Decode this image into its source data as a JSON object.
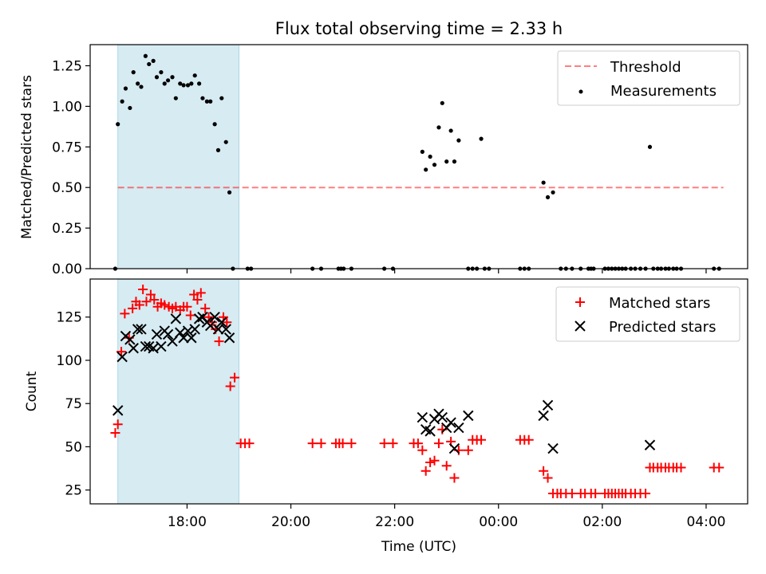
{
  "title": "Flux total observing time = 2.33 h",
  "chart_data": [
    {
      "type": "scatter",
      "ylabel": "Matched/Predicted stars",
      "xlabel": "",
      "xlim": [
        "16:08",
        "04:48"
      ],
      "ylim": [
        0,
        1.38
      ],
      "yticks": [
        "0.00",
        "0.25",
        "0.50",
        "0.75",
        "1.00",
        "1.25"
      ],
      "shaded_span": {
        "start": "16:40",
        "end": "19:00",
        "color": "#add8e6"
      },
      "threshold": {
        "name": "Threshold",
        "value": 0.5,
        "start": "16:40",
        "end": "04:20",
        "color": "#ff0000"
      },
      "legend_position": "top-right",
      "series": [
        {
          "name": "Measurements",
          "color": "#000000",
          "points": [
            [
              "16:37",
              0
            ],
            [
              "16:40",
              0.89
            ],
            [
              "16:45",
              1.03
            ],
            [
              "16:49",
              1.11
            ],
            [
              "16:54",
              0.99
            ],
            [
              "16:58",
              1.21
            ],
            [
              "17:03",
              1.14
            ],
            [
              "17:07",
              1.12
            ],
            [
              "17:12",
              1.31
            ],
            [
              "17:16",
              1.26
            ],
            [
              "17:21",
              1.28
            ],
            [
              "17:25",
              1.18
            ],
            [
              "17:30",
              1.21
            ],
            [
              "17:34",
              1.14
            ],
            [
              "17:38",
              1.16
            ],
            [
              "17:43",
              1.18
            ],
            [
              "17:47",
              1.05
            ],
            [
              "17:52",
              1.14
            ],
            [
              "17:56",
              1.13
            ],
            [
              "18:01",
              1.13
            ],
            [
              "18:05",
              1.14
            ],
            [
              "18:09",
              1.19
            ],
            [
              "18:14",
              1.14
            ],
            [
              "18:18",
              1.05
            ],
            [
              "18:23",
              1.03
            ],
            [
              "18:27",
              1.03
            ],
            [
              "18:32",
              0.89
            ],
            [
              "18:36",
              0.73
            ],
            [
              "18:40",
              1.05
            ],
            [
              "18:45",
              0.78
            ],
            [
              "18:49",
              0.47
            ],
            [
              "18:53",
              0
            ],
            [
              "19:10",
              0
            ],
            [
              "19:14",
              0
            ],
            [
              "20:25",
              0
            ],
            [
              "20:35",
              0
            ],
            [
              "20:55",
              0
            ],
            [
              "20:58",
              0
            ],
            [
              "21:01",
              0
            ],
            [
              "21:10",
              0
            ],
            [
              "21:48",
              0
            ],
            [
              "21:58",
              0
            ],
            [
              "22:32",
              0.72
            ],
            [
              "22:36",
              0.61
            ],
            [
              "22:41",
              0.69
            ],
            [
              "22:46",
              0.64
            ],
            [
              "22:51",
              0.87
            ],
            [
              "22:55",
              1.02
            ],
            [
              "23:00",
              0.66
            ],
            [
              "23:05",
              0.85
            ],
            [
              "23:09",
              0.66
            ],
            [
              "23:14",
              0.79
            ],
            [
              "23:25",
              0
            ],
            [
              "23:30",
              0
            ],
            [
              "23:35",
              0
            ],
            [
              "23:40",
              0.8
            ],
            [
              "23:44",
              0
            ],
            [
              "23:49",
              0
            ],
            [
              "00:25",
              0
            ],
            [
              "00:30",
              0
            ],
            [
              "00:35",
              0
            ],
            [
              "00:52",
              0.53
            ],
            [
              "00:57",
              0.44
            ],
            [
              "01:03",
              0.47
            ],
            [
              "01:12",
              0
            ],
            [
              "01:18",
              0
            ],
            [
              "01:25",
              0
            ],
            [
              "01:35",
              0
            ],
            [
              "01:44",
              0
            ],
            [
              "01:47",
              0
            ],
            [
              "01:50",
              0
            ],
            [
              "02:03",
              0
            ],
            [
              "02:07",
              0
            ],
            [
              "02:11",
              0
            ],
            [
              "02:15",
              0
            ],
            [
              "02:19",
              0
            ],
            [
              "02:23",
              0
            ],
            [
              "02:27",
              0
            ],
            [
              "02:33",
              0
            ],
            [
              "02:38",
              0
            ],
            [
              "02:44",
              0
            ],
            [
              "02:50",
              0
            ],
            [
              "02:55",
              0.75
            ],
            [
              "02:59",
              0
            ],
            [
              "03:04",
              0
            ],
            [
              "03:08",
              0
            ],
            [
              "03:13",
              0
            ],
            [
              "03:17",
              0
            ],
            [
              "03:22",
              0
            ],
            [
              "03:26",
              0
            ],
            [
              "03:31",
              0
            ],
            [
              "04:09",
              0
            ],
            [
              "04:15",
              0
            ]
          ]
        }
      ]
    },
    {
      "type": "scatter",
      "ylabel": "Count",
      "xlabel": "Time (UTC)",
      "xlim": [
        "16:08",
        "04:48"
      ],
      "ylim": [
        17,
        147
      ],
      "yticks": [
        "25",
        "50",
        "75",
        "100",
        "125"
      ],
      "xticks": [
        "18:00",
        "20:00",
        "22:00",
        "00:00",
        "02:00",
        "04:00"
      ],
      "shaded_span": {
        "start": "16:40",
        "end": "19:00",
        "color": "#add8e6"
      },
      "legend_position": "top-right",
      "series": [
        {
          "name": "Matched stars",
          "color": "#ff0000",
          "marker": "plus",
          "points": [
            [
              "16:37",
              58
            ],
            [
              "16:40",
              63
            ],
            [
              "16:44",
              105
            ],
            [
              "16:48",
              127
            ],
            [
              "16:53",
              113
            ],
            [
              "16:57",
              130
            ],
            [
              "17:01",
              134
            ],
            [
              "17:05",
              132
            ],
            [
              "17:09",
              141
            ],
            [
              "17:13",
              134
            ],
            [
              "17:18",
              138
            ],
            [
              "17:22",
              135
            ],
            [
              "17:26",
              131
            ],
            [
              "17:30",
              133
            ],
            [
              "17:34",
              132
            ],
            [
              "17:39",
              131
            ],
            [
              "17:43",
              130
            ],
            [
              "17:47",
              131
            ],
            [
              "17:52",
              129
            ],
            [
              "17:56",
              131
            ],
            [
              "18:00",
              131
            ],
            [
              "18:04",
              126
            ],
            [
              "18:08",
              138
            ],
            [
              "18:12",
              135
            ],
            [
              "18:16",
              139
            ],
            [
              "18:21",
              130
            ],
            [
              "18:25",
              125
            ],
            [
              "18:29",
              122
            ],
            [
              "18:33",
              118
            ],
            [
              "18:37",
              111
            ],
            [
              "18:42",
              125
            ],
            [
              "18:46",
              122
            ],
            [
              "18:50",
              85
            ],
            [
              "18:55",
              90
            ],
            [
              "19:02",
              52
            ],
            [
              "19:07",
              52
            ],
            [
              "19:12",
              52
            ],
            [
              "20:25",
              52
            ],
            [
              "20:35",
              52
            ],
            [
              "20:52",
              52
            ],
            [
              "20:56",
              52
            ],
            [
              "21:00",
              52
            ],
            [
              "21:10",
              52
            ],
            [
              "21:48",
              52
            ],
            [
              "21:58",
              52
            ],
            [
              "22:22",
              52
            ],
            [
              "22:27",
              52
            ],
            [
              "22:32",
              48
            ],
            [
              "22:36",
              36
            ],
            [
              "22:41",
              41
            ],
            [
              "22:46",
              42
            ],
            [
              "22:51",
              52
            ],
            [
              "22:55",
              60
            ],
            [
              "23:00",
              39
            ],
            [
              "23:05",
              53
            ],
            [
              "23:09",
              32
            ],
            [
              "23:14",
              48
            ],
            [
              "23:25",
              48
            ],
            [
              "23:30",
              54
            ],
            [
              "23:35",
              54
            ],
            [
              "23:40",
              54
            ],
            [
              "00:25",
              54
            ],
            [
              "00:30",
              54
            ],
            [
              "00:35",
              54
            ],
            [
              "00:52",
              36
            ],
            [
              "00:57",
              32
            ],
            [
              "01:03",
              23
            ],
            [
              "01:08",
              23
            ],
            [
              "01:12",
              23
            ],
            [
              "01:18",
              23
            ],
            [
              "01:25",
              23
            ],
            [
              "01:35",
              23
            ],
            [
              "01:40",
              23
            ],
            [
              "01:47",
              23
            ],
            [
              "01:52",
              23
            ],
            [
              "02:03",
              23
            ],
            [
              "02:07",
              23
            ],
            [
              "02:11",
              23
            ],
            [
              "02:15",
              23
            ],
            [
              "02:19",
              23
            ],
            [
              "02:23",
              23
            ],
            [
              "02:27",
              23
            ],
            [
              "02:33",
              23
            ],
            [
              "02:38",
              23
            ],
            [
              "02:44",
              23
            ],
            [
              "02:50",
              23
            ],
            [
              "02:55",
              38
            ],
            [
              "02:59",
              38
            ],
            [
              "03:04",
              38
            ],
            [
              "03:08",
              38
            ],
            [
              "03:13",
              38
            ],
            [
              "03:17",
              38
            ],
            [
              "03:22",
              38
            ],
            [
              "03:26",
              38
            ],
            [
              "03:31",
              38
            ],
            [
              "04:09",
              38
            ],
            [
              "04:15",
              38
            ]
          ]
        },
        {
          "name": "Predicted stars",
          "color": "#000000",
          "marker": "x",
          "points": [
            [
              "16:40",
              71
            ],
            [
              "16:45",
              102
            ],
            [
              "16:49",
              114
            ],
            [
              "16:54",
              112
            ],
            [
              "16:58",
              107
            ],
            [
              "17:03",
              118
            ],
            [
              "17:07",
              118
            ],
            [
              "17:12",
              108
            ],
            [
              "17:16",
              108
            ],
            [
              "17:21",
              107
            ],
            [
              "17:25",
              115
            ],
            [
              "17:30",
              108
            ],
            [
              "17:34",
              117
            ],
            [
              "17:38",
              115
            ],
            [
              "17:43",
              111
            ],
            [
              "17:47",
              124
            ],
            [
              "17:52",
              116
            ],
            [
              "17:56",
              113
            ],
            [
              "18:01",
              117
            ],
            [
              "18:05",
              113
            ],
            [
              "18:09",
              118
            ],
            [
              "18:14",
              124
            ],
            [
              "18:18",
              125
            ],
            [
              "18:23",
              122
            ],
            [
              "18:27",
              120
            ],
            [
              "18:32",
              125
            ],
            [
              "18:36",
              118
            ],
            [
              "18:40",
              122
            ],
            [
              "18:45",
              118
            ],
            [
              "18:49",
              113
            ],
            [
              "22:32",
              67
            ],
            [
              "22:36",
              60
            ],
            [
              "22:41",
              59
            ],
            [
              "22:46",
              66
            ],
            [
              "22:51",
              69
            ],
            [
              "22:55",
              67
            ],
            [
              "23:00",
              61
            ],
            [
              "23:05",
              64
            ],
            [
              "23:09",
              49
            ],
            [
              "23:14",
              61
            ],
            [
              "23:25",
              68
            ],
            [
              "00:52",
              68
            ],
            [
              "00:57",
              74
            ],
            [
              "01:03",
              49
            ],
            [
              "02:55",
              51
            ]
          ]
        }
      ]
    }
  ],
  "legend_top": {
    "threshold_label": "Threshold",
    "measurements_label": "Measurements"
  },
  "legend_bottom": {
    "matched_label": "Matched stars",
    "predicted_label": "Predicted stars"
  }
}
